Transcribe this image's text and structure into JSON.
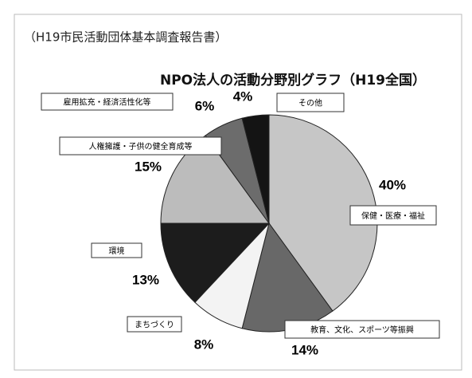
{
  "chart_data": {
    "type": "pie",
    "subtitle": "（H19市民活動団体基本調査報告書）",
    "title": "NPO法人の活動分野別グラフ（H19全国）",
    "categories": [
      "保健・医療・福祉",
      "教育、文化、スポーツ等振興",
      "まちづくり",
      "環境",
      "人権擁護・子供の健全育成等",
      "雇用拡充・経済活性化等",
      "その他"
    ],
    "values": [
      40,
      14,
      8,
      13,
      15,
      6,
      4
    ],
    "value_labels": [
      "40%",
      "14%",
      "8%",
      "13%",
      "15%",
      "6%",
      "4%"
    ],
    "colors": [
      "#c6c6c6",
      "#686868",
      "#f3f3f3",
      "#1c1c1c",
      "#bcbcbc",
      "#6c6c6c",
      "#141414"
    ]
  }
}
